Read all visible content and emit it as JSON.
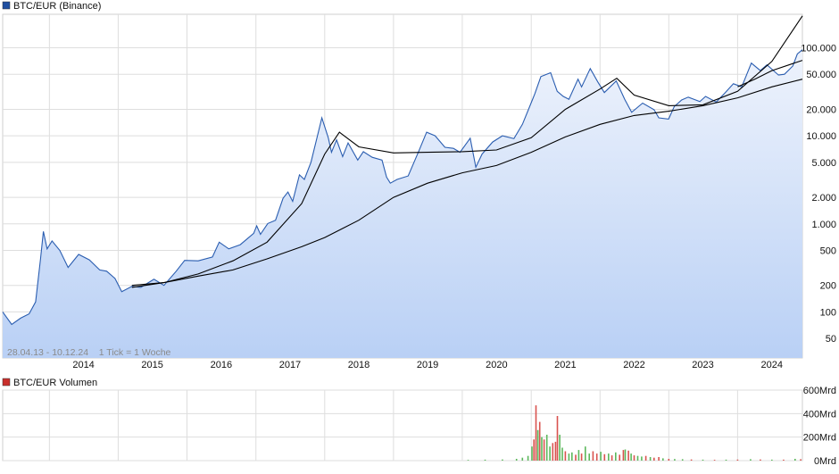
{
  "colors": {
    "price_line": "#2a5db0",
    "area_top": "#eef3fc",
    "area_bottom": "#b9d0f5",
    "ma_line": "#000000",
    "grid": "#dedede",
    "vol_up": "#5cb85c",
    "vol_down": "#d9534f",
    "legend_price": "#1f4fa0",
    "legend_volume": "#c9302c"
  },
  "price_panel": {
    "legend": "BTC/EUR (Binance)",
    "info": "28.04.13 - 10.12.24    1 Tick = 1 Woche"
  },
  "volume_panel": {
    "legend": "BTC/EUR Volumen"
  },
  "chart_data": [
    {
      "type": "line",
      "title": "BTC/EUR (Binance)",
      "y_scale": "log",
      "ylim": [
        30,
        240000
      ],
      "y_ticks": [
        50,
        100,
        200,
        500,
        1000,
        2000,
        5000,
        10000,
        20000,
        50000,
        100000
      ],
      "y_tick_labels": [
        "50",
        "100",
        "200",
        "500",
        "1.000",
        "2.000",
        "5.000",
        "10.000",
        "20.000",
        "50.000",
        "100.000"
      ],
      "x_range": [
        "2013-04-28",
        "2024-12-10"
      ],
      "x_ticks": [
        "2014",
        "2015",
        "2016",
        "2017",
        "2018",
        "2019",
        "2020",
        "2021",
        "2022",
        "2023",
        "2024"
      ],
      "grid": true,
      "series": [
        {
          "name": "BTC/EUR (Binance)",
          "x": [
            "2013-04-28",
            "2013-06-15",
            "2013-08-01",
            "2013-09-15",
            "2013-10-20",
            "2013-11-15",
            "2013-11-30",
            "2013-12-20",
            "2014-01-15",
            "2014-02-25",
            "2014-04-10",
            "2014-06-05",
            "2014-08-01",
            "2014-09-25",
            "2014-11-01",
            "2014-12-15",
            "2015-01-20",
            "2015-03-15",
            "2015-05-01",
            "2015-07-10",
            "2015-09-01",
            "2015-11-05",
            "2015-12-20",
            "2016-03-01",
            "2016-05-15",
            "2016-06-20",
            "2016-08-10",
            "2016-10-10",
            "2016-12-20",
            "2017-01-05",
            "2017-01-25",
            "2017-03-05",
            "2017-04-15",
            "2017-05-25",
            "2017-06-20",
            "2017-07-15",
            "2017-08-20",
            "2017-09-15",
            "2017-10-20",
            "2017-12-17",
            "2018-01-20",
            "2018-02-06",
            "2018-03-05",
            "2018-04-06",
            "2018-05-05",
            "2018-06-25",
            "2018-07-25",
            "2018-09-10",
            "2018-11-01",
            "2018-11-25",
            "2018-12-15",
            "2019-01-20",
            "2019-03-20",
            "2019-05-15",
            "2019-06-26",
            "2019-08-10",
            "2019-10-01",
            "2019-11-15",
            "2019-12-20",
            "2020-02-12",
            "2020-03-13",
            "2020-04-15",
            "2020-06-10",
            "2020-08-01",
            "2020-10-01",
            "2020-11-15",
            "2020-12-31",
            "2021-01-20",
            "2021-02-21",
            "2021-04-14",
            "2021-05-19",
            "2021-06-20",
            "2021-07-20",
            "2021-09-06",
            "2021-09-25",
            "2021-11-10",
            "2021-12-20",
            "2022-01-24",
            "2022-03-28",
            "2022-05-12",
            "2022-06-18",
            "2022-08-15",
            "2022-10-15",
            "2022-11-09",
            "2022-12-31",
            "2023-01-30",
            "2023-03-10",
            "2023-04-14",
            "2023-06-15",
            "2023-07-15",
            "2023-09-10",
            "2023-10-25",
            "2023-12-10",
            "2024-01-23",
            "2024-03-14",
            "2024-05-01",
            "2024-06-05",
            "2024-08-05",
            "2024-09-06",
            "2024-10-20",
            "2024-11-13",
            "2024-12-10"
          ],
          "y": [
            100,
            72,
            85,
            95,
            130,
            400,
            820,
            520,
            640,
            500,
            320,
            450,
            390,
            300,
            290,
            240,
            170,
            195,
            190,
            235,
            200,
            290,
            385,
            380,
            420,
            620,
            520,
            580,
            780,
            950,
            760,
            1010,
            1100,
            1950,
            2300,
            1800,
            3600,
            3200,
            5000,
            16000,
            9500,
            6500,
            9000,
            5800,
            8300,
            5300,
            6600,
            5700,
            5300,
            3400,
            2900,
            3200,
            3500,
            6700,
            11000,
            10000,
            7400,
            7200,
            6500,
            9400,
            4400,
            6200,
            8500,
            10000,
            9300,
            13500,
            23500,
            30000,
            47000,
            52000,
            32000,
            28000,
            26000,
            44000,
            36000,
            58000,
            41000,
            31000,
            42000,
            26000,
            18500,
            23500,
            19800,
            16000,
            15500,
            21500,
            25500,
            27500,
            24500,
            28000,
            24200,
            30500,
            39000,
            36000,
            67000,
            55000,
            64000,
            49000,
            50000,
            62000,
            85000,
            95000
          ]
        },
        {
          "name": "",
          "x": [
            "2015-03-15",
            "2015-09-01",
            "2016-03-01",
            "2016-09-01",
            "2017-03-01",
            "2017-09-01",
            "2018-01-01",
            "2018-07-01",
            "2019-01-01",
            "2019-07-01",
            "2020-01-01",
            "2020-07-01",
            "2021-01-01",
            "2021-07-01",
            "2022-01-01",
            "2022-07-01",
            "2023-01-01",
            "2023-07-01",
            "2024-01-01",
            "2024-07-01",
            "2024-12-10"
          ],
          "y": [
            190,
            215,
            255,
            300,
            400,
            550,
            700,
            1100,
            2000,
            2900,
            3800,
            4600,
            6500,
            9700,
            13500,
            17000,
            19000,
            22000,
            27000,
            36000,
            44000
          ]
        },
        {
          "name": "",
          "x": [
            "2015-03-15",
            "2015-09-01",
            "2016-03-01",
            "2016-09-01",
            "2017-03-01",
            "2017-09-01",
            "2018-01-01",
            "2018-03-20",
            "2018-07-01",
            "2019-01-01",
            "2019-07-01",
            "2020-01-01",
            "2020-07-01",
            "2021-01-01",
            "2021-07-01",
            "2022-01-01",
            "2022-03-31",
            "2022-07-01",
            "2023-01-01",
            "2023-07-01",
            "2024-01-01",
            "2024-07-01",
            "2024-12-10"
          ],
          "y": [
            200,
            215,
            270,
            380,
            620,
            1700,
            6200,
            11000,
            7500,
            6400,
            6500,
            6600,
            6900,
            9500,
            20000,
            34000,
            45000,
            29000,
            22000,
            22500,
            32000,
            70000,
            230000
          ]
        },
        {
          "name": "",
          "x": [
            "2024-01-01",
            "2024-04-01",
            "2024-07-01",
            "2024-12-10"
          ],
          "y": [
            36000,
            44000,
            55000,
            72000
          ]
        }
      ]
    },
    {
      "type": "bar",
      "title": "BTC/EUR Volumen",
      "unit": "Mrd",
      "ylim": [
        0,
        600
      ],
      "y_ticks": [
        0,
        200,
        400,
        600
      ],
      "y_tick_labels": [
        "0Mrd",
        "200Mrd",
        "400Mrd",
        "600Mrd"
      ],
      "x_range": [
        "2013-04-28",
        "2024-12-10"
      ],
      "series": [
        {
          "name": "BTC/EUR Volumen",
          "x": [
            "2020-02-01",
            "2020-05-01",
            "2020-08-01",
            "2020-10-15",
            "2020-11-15",
            "2020-12-15",
            "2021-01-05",
            "2021-01-15",
            "2021-01-26",
            "2021-02-05",
            "2021-02-15",
            "2021-02-26",
            "2021-03-10",
            "2021-03-25",
            "2021-04-10",
            "2021-04-25",
            "2021-05-10",
            "2021-05-20",
            "2021-06-01",
            "2021-06-15",
            "2021-07-01",
            "2021-07-20",
            "2021-08-05",
            "2021-08-25",
            "2021-09-10",
            "2021-09-25",
            "2021-10-15",
            "2021-11-05",
            "2021-11-25",
            "2021-12-15",
            "2022-01-05",
            "2022-01-25",
            "2022-02-15",
            "2022-03-05",
            "2022-03-25",
            "2022-04-15",
            "2022-05-05",
            "2022-05-15",
            "2022-06-01",
            "2022-06-15",
            "2022-07-01",
            "2022-07-20",
            "2022-08-10",
            "2022-09-01",
            "2022-09-25",
            "2022-10-15",
            "2022-11-09",
            "2022-12-01",
            "2023-01-01",
            "2023-02-01",
            "2023-03-15",
            "2023-05-01",
            "2023-07-01",
            "2023-09-01",
            "2023-11-01",
            "2024-01-01",
            "2024-03-10",
            "2024-05-01",
            "2024-07-01",
            "2024-09-01",
            "2024-11-01",
            "2024-12-01"
          ],
          "values": [
            6,
            8,
            10,
            15,
            25,
            40,
            120,
            180,
            470,
            260,
            330,
            200,
            180,
            220,
            120,
            150,
            160,
            380,
            220,
            110,
            80,
            60,
            70,
            50,
            90,
            60,
            120,
            60,
            80,
            60,
            75,
            55,
            60,
            45,
            70,
            50,
            90,
            95,
            85,
            60,
            45,
            40,
            35,
            40,
            30,
            25,
            30,
            20,
            15,
            14,
            12,
            10,
            8,
            7,
            8,
            9,
            12,
            10,
            8,
            8,
            15,
            12
          ],
          "direction": [
            "up",
            "up",
            "up",
            "up",
            "up",
            "up",
            "up",
            "down",
            "down",
            "up",
            "down",
            "up",
            "down",
            "up",
            "up",
            "down",
            "down",
            "down",
            "up",
            "up",
            "down",
            "up",
            "up",
            "down",
            "up",
            "down",
            "up",
            "up",
            "down",
            "down",
            "up",
            "down",
            "up",
            "down",
            "up",
            "down",
            "down",
            "up",
            "down",
            "up",
            "down",
            "up",
            "up",
            "down",
            "up",
            "down",
            "down",
            "up",
            "down",
            "up",
            "up",
            "down",
            "up",
            "down",
            "up",
            "down",
            "up",
            "down",
            "up",
            "down",
            "up",
            "down"
          ]
        }
      ]
    }
  ]
}
